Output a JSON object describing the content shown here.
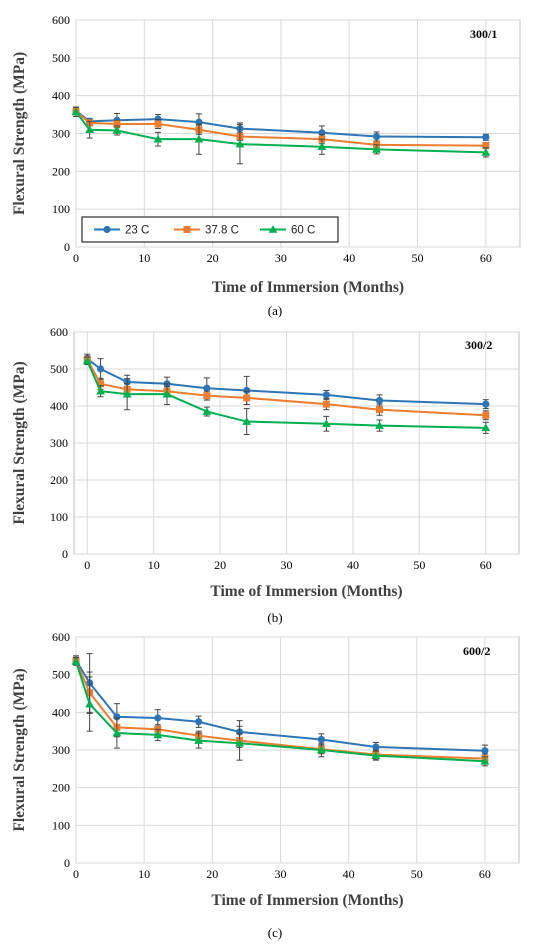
{
  "chart_data": [
    {
      "type": "line",
      "panel_label": "300/1",
      "caption": "(a)",
      "xlabel": "Time of Immersion (Months)",
      "ylabel": "Flexural Strength (MPa)",
      "xlim": [
        0,
        65
      ],
      "ylim": [
        0,
        600
      ],
      "xticks": [
        0,
        10,
        20,
        30,
        40,
        50,
        60
      ],
      "yticks": [
        0,
        100,
        200,
        300,
        400,
        500,
        600
      ],
      "grid": true,
      "legend": "bottom-left",
      "x": [
        0,
        2,
        6,
        12,
        18,
        24,
        36,
        44,
        60
      ],
      "series": [
        {
          "name": "23 C",
          "color": "#2e75b6",
          "marker": "circle",
          "values": [
            360,
            332,
            335,
            338,
            330,
            313,
            302,
            292,
            290
          ],
          "errors": [
            10,
            8,
            18,
            12,
            22,
            15,
            18,
            12,
            8
          ]
        },
        {
          "name": "37.8 C",
          "color": "#ed7d31",
          "marker": "square",
          "values": [
            358,
            328,
            325,
            325,
            310,
            292,
            285,
            270,
            268
          ],
          "errors": [
            8,
            8,
            10,
            12,
            12,
            10,
            12,
            10,
            8
          ]
        },
        {
          "name": "60 C",
          "color": "#00b050",
          "marker": "triangle",
          "values": [
            357,
            310,
            308,
            285,
            285,
            272,
            265,
            258,
            250
          ],
          "errors": [
            12,
            22,
            12,
            18,
            40,
            52,
            20,
            12,
            12
          ]
        }
      ]
    },
    {
      "type": "line",
      "panel_label": "300/2",
      "caption": "(b)",
      "xlabel": "Time of Immersion (Months)",
      "ylabel": "Flexural Strength (MPa)",
      "xlim": [
        -2,
        65
      ],
      "ylim": [
        0,
        600
      ],
      "xticks": [
        0,
        10,
        20,
        30,
        40,
        50,
        60
      ],
      "yticks": [
        0,
        100,
        200,
        300,
        400,
        500,
        600
      ],
      "grid": true,
      "legend": "none",
      "x": [
        0,
        2,
        6,
        12,
        18,
        24,
        36,
        44,
        60
      ],
      "series": [
        {
          "name": "23 C",
          "color": "#2e75b6",
          "marker": "circle",
          "values": [
            528,
            500,
            465,
            460,
            448,
            442,
            430,
            415,
            405
          ],
          "errors": [
            12,
            28,
            18,
            18,
            28,
            38,
            12,
            15,
            12
          ]
        },
        {
          "name": "37.8 C",
          "color": "#ed7d31",
          "marker": "square",
          "values": [
            525,
            460,
            445,
            440,
            428,
            422,
            405,
            390,
            375
          ],
          "errors": [
            10,
            15,
            15,
            12,
            12,
            18,
            15,
            15,
            12
          ]
        },
        {
          "name": "60 C",
          "color": "#00b050",
          "marker": "triangle",
          "values": [
            522,
            440,
            432,
            432,
            385,
            358,
            352,
            347,
            341
          ],
          "errors": [
            10,
            15,
            42,
            28,
            12,
            35,
            20,
            15,
            15
          ]
        }
      ]
    },
    {
      "type": "line",
      "panel_label": "600/2",
      "caption": "(c)",
      "xlabel": "Time of Immersion (Months)",
      "ylabel": "Flexural Strength (MPa)",
      "xlim": [
        0,
        65
      ],
      "ylim": [
        0,
        600
      ],
      "xticks": [
        0,
        10,
        20,
        30,
        40,
        50,
        60
      ],
      "yticks": [
        0,
        100,
        200,
        300,
        400,
        500,
        600
      ],
      "grid": true,
      "legend": "none",
      "x": [
        0,
        2,
        6,
        12,
        18,
        24,
        36,
        44,
        60
      ],
      "series": [
        {
          "name": "23 C",
          "color": "#2e75b6",
          "marker": "circle",
          "values": [
            538,
            478,
            388,
            385,
            375,
            348,
            328,
            308,
            298
          ],
          "errors": [
            12,
            78,
            35,
            22,
            15,
            30,
            15,
            12,
            15
          ]
        },
        {
          "name": "37.8 C",
          "color": "#ed7d31",
          "marker": "square",
          "values": [
            536,
            452,
            360,
            355,
            338,
            325,
            302,
            288,
            277
          ],
          "errors": [
            10,
            55,
            25,
            12,
            12,
            18,
            12,
            12,
            12
          ]
        },
        {
          "name": "60 C",
          "color": "#00b050",
          "marker": "triangle",
          "values": [
            535,
            422,
            345,
            340,
            325,
            318,
            300,
            285,
            270
          ],
          "errors": [
            10,
            72,
            40,
            15,
            20,
            45,
            18,
            12,
            12
          ]
        }
      ]
    }
  ]
}
